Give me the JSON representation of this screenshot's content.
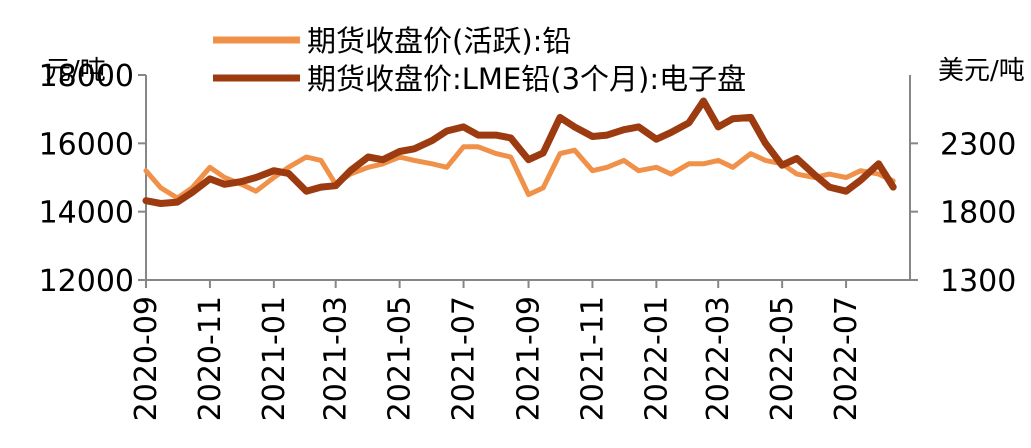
{
  "chart_data": {
    "type": "line",
    "title": "",
    "legend": {
      "placement": "top",
      "entries": [
        "期货收盘价(活跃):铅",
        "期货收盘价:LME铅(3个月):电子盘"
      ]
    },
    "left_axis": {
      "unit": "元/吨",
      "ylim": [
        12000,
        18000
      ],
      "ticks": [
        "12000",
        "14000",
        "16000",
        "18000"
      ]
    },
    "right_axis": {
      "unit": "美元/吨",
      "ylim": [
        1300,
        2800
      ],
      "ticks": [
        "1300",
        "1800",
        "2300"
      ]
    },
    "x_axis": {
      "range": [
        "2020-09",
        "2022-08"
      ],
      "ticks": [
        "2020-09",
        "2020-11",
        "2021-01",
        "2021-03",
        "2021-05",
        "2021-07",
        "2021-09",
        "2021-11",
        "2022-01",
        "2022-03",
        "2022-05",
        "2022-07"
      ]
    },
    "grid": false,
    "series": [
      {
        "name": "期货收盘价(活跃):铅",
        "axis": "left",
        "color": "#F0914A",
        "x": [
          "2020-09-01",
          "2020-09-15",
          "2020-10-01",
          "2020-10-15",
          "2020-11-01",
          "2020-11-15",
          "2020-12-01",
          "2020-12-15",
          "2021-01-01",
          "2021-01-15",
          "2021-02-01",
          "2021-02-15",
          "2021-03-01",
          "2021-03-15",
          "2021-04-01",
          "2021-04-15",
          "2021-05-01",
          "2021-05-15",
          "2021-06-01",
          "2021-06-15",
          "2021-07-01",
          "2021-07-15",
          "2021-08-01",
          "2021-08-15",
          "2021-09-01",
          "2021-09-15",
          "2021-10-01",
          "2021-10-15",
          "2021-11-01",
          "2021-11-15",
          "2021-12-01",
          "2021-12-15",
          "2022-01-01",
          "2022-01-15",
          "2022-02-01",
          "2022-02-15",
          "2022-03-01",
          "2022-03-15",
          "2022-04-01",
          "2022-04-15",
          "2022-05-01",
          "2022-05-15",
          "2022-06-01",
          "2022-06-15",
          "2022-07-01",
          "2022-07-15",
          "2022-08-01",
          "2022-08-15"
        ],
        "values": [
          15200,
          14700,
          14400,
          14700,
          15300,
          15000,
          14800,
          14600,
          15000,
          15300,
          15600,
          15500,
          14800,
          15100,
          15300,
          15400,
          15600,
          15500,
          15400,
          15300,
          15900,
          15900,
          15700,
          15600,
          14500,
          14700,
          15700,
          15800,
          15200,
          15300,
          15500,
          15200,
          15300,
          15100,
          15400,
          15400,
          15500,
          15300,
          15700,
          15500,
          15400,
          15100,
          15000,
          15100,
          15000,
          15200,
          15100,
          14900
        ]
      },
      {
        "name": "期货收盘价:LME铅(3个月):电子盘",
        "axis": "right",
        "color": "#9C3A10",
        "x": [
          "2020-09-01",
          "2020-09-15",
          "2020-10-01",
          "2020-10-15",
          "2020-11-01",
          "2020-11-15",
          "2020-12-01",
          "2020-12-15",
          "2021-01-01",
          "2021-01-15",
          "2021-02-01",
          "2021-02-15",
          "2021-03-01",
          "2021-03-15",
          "2021-04-01",
          "2021-04-15",
          "2021-05-01",
          "2021-05-15",
          "2021-06-01",
          "2021-06-15",
          "2021-07-01",
          "2021-07-15",
          "2021-08-01",
          "2021-08-15",
          "2021-09-01",
          "2021-09-15",
          "2021-10-01",
          "2021-10-15",
          "2021-11-01",
          "2021-11-15",
          "2021-12-01",
          "2021-12-15",
          "2022-01-01",
          "2022-01-15",
          "2022-02-01",
          "2022-02-15",
          "2022-03-01",
          "2022-03-15",
          "2022-04-01",
          "2022-04-15",
          "2022-05-01",
          "2022-05-15",
          "2022-06-01",
          "2022-06-15",
          "2022-07-01",
          "2022-07-15",
          "2022-08-01",
          "2022-08-15"
        ],
        "values": [
          1880,
          1860,
          1870,
          1940,
          2040,
          2000,
          2020,
          2050,
          2100,
          2080,
          1950,
          1980,
          1990,
          2100,
          2200,
          2180,
          2240,
          2260,
          2320,
          2390,
          2420,
          2360,
          2360,
          2340,
          2180,
          2230,
          2490,
          2420,
          2350,
          2360,
          2400,
          2420,
          2330,
          2380,
          2450,
          2610,
          2420,
          2480,
          2490,
          2300,
          2140,
          2190,
          2070,
          1980,
          1950,
          2030,
          2150,
          1980
        ]
      }
    ]
  }
}
